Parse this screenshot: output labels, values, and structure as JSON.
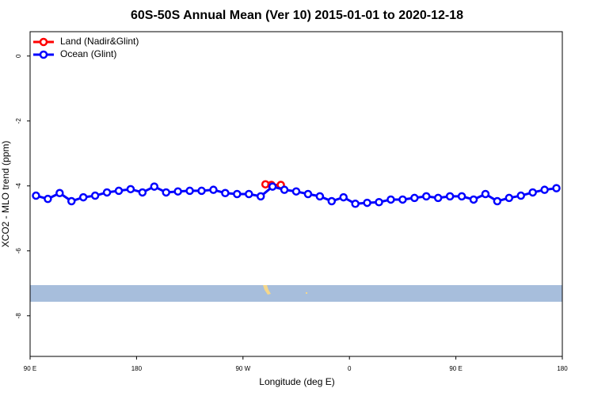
{
  "chart_data": {
    "type": "line",
    "title": "60S-50S Annual Mean (Ver 10)   2015-01-01 to 2020-12-18",
    "xlabel": "Longitude (deg E)",
    "ylabel": "XCO2 - MLO trend (ppm)",
    "xlim": [
      90,
      540
    ],
    "xticks": [
      {
        "value": 90,
        "label": "90 E"
      },
      180,
      {
        "value": 270,
        "label": "90 W"
      },
      {
        "value": 360,
        "label": "0"
      },
      {
        "value": 450,
        "label": "90 E"
      },
      {
        "value": 540,
        "label": "180"
      }
    ],
    "ylim": [
      -9.25,
      0.75
    ],
    "yticks": [
      0,
      -2,
      -4,
      -6,
      -8
    ],
    "legend": "upper left",
    "series": [
      {
        "name": "Land (Nadir&Glint)",
        "color": "#ff0000",
        "x": [
          289,
          294,
          302
        ],
        "values": [
          -3.95,
          -3.97,
          -3.97
        ]
      },
      {
        "name": "Ocean (Glint)",
        "color": "#0000ff",
        "x": [
          95,
          105,
          115,
          125,
          135,
          145,
          155,
          165,
          175,
          185,
          195,
          205,
          215,
          225,
          235,
          245,
          255,
          265,
          275,
          285,
          295,
          305,
          315,
          325,
          335,
          345,
          355,
          365,
          375,
          385,
          395,
          405,
          415,
          425,
          435,
          445,
          455,
          465,
          475,
          485,
          495,
          505,
          515,
          525,
          535
        ],
        "values": [
          -4.3,
          -4.4,
          -4.22,
          -4.47,
          -4.35,
          -4.3,
          -4.2,
          -4.15,
          -4.1,
          -4.2,
          -4.02,
          -4.2,
          -4.17,
          -4.15,
          -4.15,
          -4.12,
          -4.22,
          -4.25,
          -4.25,
          -4.32,
          -4.02,
          -4.12,
          -4.17,
          -4.25,
          -4.32,
          -4.47,
          -4.35,
          -4.55,
          -4.52,
          -4.5,
          -4.42,
          -4.42,
          -4.37,
          -4.32,
          -4.37,
          -4.32,
          -4.32,
          -4.42,
          -4.25,
          -4.47,
          -4.37,
          -4.3,
          -4.2,
          -4.12,
          -4.07
        ]
      }
    ]
  }
}
